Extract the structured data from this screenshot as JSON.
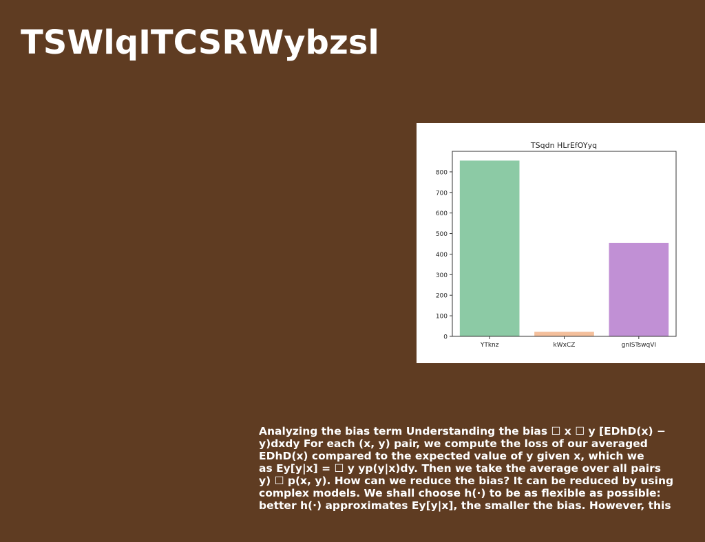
{
  "slide": {
    "title": "TSWlqITCSRWybzsl",
    "body_lines": [
      "Analyzing the bias term Understanding the bias ☐ x ☐ y [EDhD(x) −",
      "y)dxdy For each (x, y) pair, we compute the loss of our averaged",
      "EDhD(x) compared to the expected value of y given x, which we",
      "as Ey[y|x] = ☐ y yp(y|x)dy. Then we take the average over all pairs",
      "y) ☐ p(x, y). How can we reduce the bias? It can be reduced by using",
      "complex models. We shall choose h(·) to be as flexible as possible:",
      "better h(·) approximates Ey[y|x], the smaller the bias. However, this"
    ],
    "colors": {
      "background": "#5f3c22",
      "text": "#ffffff",
      "panel": "#ffffff"
    }
  },
  "chart_data": {
    "type": "bar",
    "title": "TSqdn HLrEfOYyq",
    "categories": [
      "YTknz",
      "kWxCZ",
      "gnISTswqVI"
    ],
    "values": [
      855,
      22,
      455
    ],
    "colors": [
      "#8ccaa5",
      "#f4bf9b",
      "#c190d5"
    ],
    "xlabel": "",
    "ylabel": "",
    "ylim": [
      0,
      900
    ],
    "yticks": [
      0,
      100,
      200,
      300,
      400,
      500,
      600,
      700,
      800
    ],
    "grid": false
  }
}
